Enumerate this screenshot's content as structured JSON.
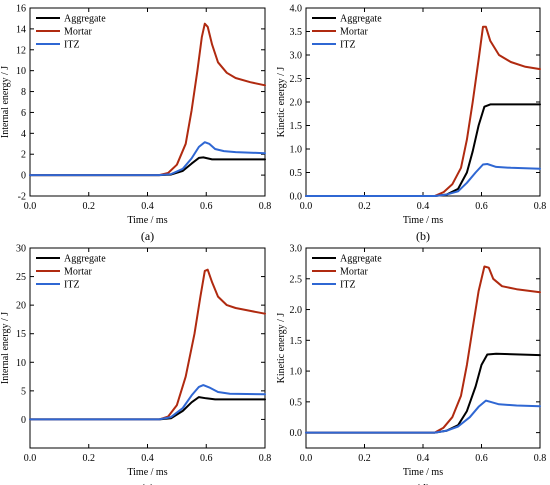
{
  "colors": {
    "Aggregate": "#000000",
    "Mortar": "#b02a10",
    "ITZ": "#2f67d3"
  },
  "chart_data": [
    {
      "id": "a",
      "type": "line",
      "caption": "(a)",
      "xlabel": "Time / ms",
      "ylabel": "Internal energy / J",
      "xlim": [
        0.0,
        0.8
      ],
      "ylim": [
        -2,
        16
      ],
      "xticks": [
        0.0,
        0.2,
        0.4,
        0.6,
        0.8
      ],
      "yticks": [
        -2,
        0,
        2,
        4,
        6,
        8,
        10,
        12,
        14,
        16
      ],
      "xtick_labels": [
        "0.0",
        "0.2",
        "0.4",
        "0.6",
        "0.8"
      ],
      "ytick_labels": [
        "-2",
        "0",
        "2",
        "4",
        "6",
        "8",
        "10",
        "12",
        "14",
        "16"
      ],
      "legend": "top-left",
      "series": [
        {
          "name": "Aggregate",
          "points": [
            [
              0,
              0
            ],
            [
              0.44,
              0
            ],
            [
              0.48,
              0.05
            ],
            [
              0.52,
              0.4
            ],
            [
              0.55,
              1.1
            ],
            [
              0.575,
              1.65
            ],
            [
              0.59,
              1.7
            ],
            [
              0.62,
              1.5
            ],
            [
              0.66,
              1.5
            ],
            [
              0.8,
              1.5
            ]
          ]
        },
        {
          "name": "Mortar",
          "points": [
            [
              0,
              0
            ],
            [
              0.44,
              0
            ],
            [
              0.47,
              0.2
            ],
            [
              0.5,
              1.0
            ],
            [
              0.53,
              3.0
            ],
            [
              0.55,
              6.2
            ],
            [
              0.57,
              10.0
            ],
            [
              0.585,
              13.2
            ],
            [
              0.595,
              14.5
            ],
            [
              0.605,
              14.2
            ],
            [
              0.62,
              12.5
            ],
            [
              0.64,
              10.8
            ],
            [
              0.67,
              9.8
            ],
            [
              0.7,
              9.3
            ],
            [
              0.75,
              8.9
            ],
            [
              0.8,
              8.6
            ]
          ]
        },
        {
          "name": "ITZ",
          "points": [
            [
              0,
              0
            ],
            [
              0.44,
              0
            ],
            [
              0.48,
              0.1
            ],
            [
              0.52,
              0.6
            ],
            [
              0.55,
              1.6
            ],
            [
              0.575,
              2.7
            ],
            [
              0.595,
              3.15
            ],
            [
              0.61,
              3.0
            ],
            [
              0.63,
              2.5
            ],
            [
              0.66,
              2.3
            ],
            [
              0.7,
              2.2
            ],
            [
              0.8,
              2.1
            ]
          ]
        }
      ]
    },
    {
      "id": "b",
      "type": "line",
      "caption": "(b)",
      "xlabel": "Time / ms",
      "ylabel": "Kinetic energy / J",
      "xlim": [
        0.0,
        0.8
      ],
      "ylim": [
        0.0,
        4.0
      ],
      "xticks": [
        0.0,
        0.2,
        0.4,
        0.6,
        0.8
      ],
      "yticks": [
        0.0,
        0.5,
        1.0,
        1.5,
        2.0,
        2.5,
        3.0,
        3.5,
        4.0
      ],
      "xtick_labels": [
        "0.0",
        "0.2",
        "0.4",
        "0.6",
        "0.8"
      ],
      "ytick_labels": [
        "0.0",
        "0.5",
        "1.0",
        "1.5",
        "2.0",
        "2.5",
        "3.0",
        "3.5",
        "4.0"
      ],
      "legend": "top-left",
      "series": [
        {
          "name": "Aggregate",
          "points": [
            [
              0,
              0
            ],
            [
              0.44,
              0
            ],
            [
              0.48,
              0.03
            ],
            [
              0.52,
              0.15
            ],
            [
              0.55,
              0.5
            ],
            [
              0.57,
              0.95
            ],
            [
              0.59,
              1.5
            ],
            [
              0.61,
              1.9
            ],
            [
              0.63,
              1.95
            ],
            [
              0.8,
              1.95
            ]
          ]
        },
        {
          "name": "Mortar",
          "points": [
            [
              0,
              0
            ],
            [
              0.44,
              0
            ],
            [
              0.47,
              0.08
            ],
            [
              0.5,
              0.25
            ],
            [
              0.53,
              0.6
            ],
            [
              0.55,
              1.2
            ],
            [
              0.57,
              2.0
            ],
            [
              0.59,
              2.9
            ],
            [
              0.605,
              3.6
            ],
            [
              0.615,
              3.6
            ],
            [
              0.63,
              3.3
            ],
            [
              0.66,
              3.0
            ],
            [
              0.7,
              2.85
            ],
            [
              0.75,
              2.75
            ],
            [
              0.8,
              2.7
            ]
          ]
        },
        {
          "name": "ITZ",
          "points": [
            [
              0,
              0
            ],
            [
              0.44,
              0
            ],
            [
              0.48,
              0.03
            ],
            [
              0.52,
              0.1
            ],
            [
              0.55,
              0.28
            ],
            [
              0.58,
              0.5
            ],
            [
              0.605,
              0.67
            ],
            [
              0.62,
              0.68
            ],
            [
              0.65,
              0.62
            ],
            [
              0.7,
              0.6
            ],
            [
              0.8,
              0.58
            ]
          ]
        }
      ]
    },
    {
      "id": "c",
      "type": "line",
      "caption": "(c)",
      "xlabel": "Time / ms",
      "ylabel": "Internal energy / J",
      "xlim": [
        0.0,
        0.8
      ],
      "ylim": [
        -5,
        30
      ],
      "xticks": [
        0.0,
        0.2,
        0.4,
        0.6,
        0.8
      ],
      "yticks": [
        0,
        5,
        10,
        15,
        20,
        25,
        30
      ],
      "xtick_labels": [
        "0.0",
        "0.2",
        "0.4",
        "0.6",
        "0.8"
      ],
      "ytick_labels": [
        "0",
        "5",
        "10",
        "15",
        "20",
        "25",
        "30"
      ],
      "legend": "top-left",
      "series": [
        {
          "name": "Aggregate",
          "points": [
            [
              0,
              0
            ],
            [
              0.44,
              0
            ],
            [
              0.48,
              0.2
            ],
            [
              0.52,
              1.5
            ],
            [
              0.55,
              3.0
            ],
            [
              0.575,
              3.9
            ],
            [
              0.6,
              3.7
            ],
            [
              0.63,
              3.5
            ],
            [
              0.8,
              3.5
            ]
          ]
        },
        {
          "name": "Mortar",
          "points": [
            [
              0,
              0
            ],
            [
              0.44,
              0
            ],
            [
              0.47,
              0.5
            ],
            [
              0.5,
              2.5
            ],
            [
              0.53,
              7.5
            ],
            [
              0.56,
              15.0
            ],
            [
              0.58,
              21.5
            ],
            [
              0.595,
              26.0
            ],
            [
              0.605,
              26.2
            ],
            [
              0.62,
              24.0
            ],
            [
              0.64,
              21.5
            ],
            [
              0.67,
              20.0
            ],
            [
              0.7,
              19.5
            ],
            [
              0.75,
              19.0
            ],
            [
              0.8,
              18.5
            ]
          ]
        },
        {
          "name": "ITZ",
          "points": [
            [
              0,
              0
            ],
            [
              0.44,
              0
            ],
            [
              0.48,
              0.4
            ],
            [
              0.52,
              2.0
            ],
            [
              0.55,
              4.2
            ],
            [
              0.575,
              5.7
            ],
            [
              0.59,
              6.0
            ],
            [
              0.61,
              5.6
            ],
            [
              0.64,
              4.8
            ],
            [
              0.68,
              4.5
            ],
            [
              0.8,
              4.4
            ]
          ]
        }
      ]
    },
    {
      "id": "d",
      "type": "line",
      "caption": "(d)",
      "xlabel": "Time / ms",
      "ylabel": "Kinetic energy / J",
      "xlim": [
        0.0,
        0.8
      ],
      "ylim": [
        -0.25,
        3.0
      ],
      "xticks": [
        0.0,
        0.2,
        0.4,
        0.6,
        0.8
      ],
      "yticks": [
        0.0,
        0.5,
        1.0,
        1.5,
        2.0,
        2.5,
        3.0
      ],
      "xtick_labels": [
        "0.0",
        "0.2",
        "0.4",
        "0.6",
        "0.8"
      ],
      "ytick_labels": [
        "0.0",
        "0.5",
        "1.0",
        "1.5",
        "2.0",
        "2.5",
        "3.0"
      ],
      "legend": "top-left",
      "series": [
        {
          "name": "Aggregate",
          "points": [
            [
              0,
              0
            ],
            [
              0.44,
              0
            ],
            [
              0.48,
              0.03
            ],
            [
              0.52,
              0.12
            ],
            [
              0.55,
              0.35
            ],
            [
              0.58,
              0.75
            ],
            [
              0.6,
              1.1
            ],
            [
              0.62,
              1.27
            ],
            [
              0.65,
              1.28
            ],
            [
              0.8,
              1.26
            ]
          ]
        },
        {
          "name": "Mortar",
          "points": [
            [
              0,
              0
            ],
            [
              0.44,
              0
            ],
            [
              0.47,
              0.08
            ],
            [
              0.5,
              0.25
            ],
            [
              0.53,
              0.6
            ],
            [
              0.55,
              1.1
            ],
            [
              0.57,
              1.7
            ],
            [
              0.59,
              2.3
            ],
            [
              0.61,
              2.7
            ],
            [
              0.625,
              2.68
            ],
            [
              0.64,
              2.5
            ],
            [
              0.67,
              2.38
            ],
            [
              0.72,
              2.33
            ],
            [
              0.8,
              2.28
            ]
          ]
        },
        {
          "name": "ITZ",
          "points": [
            [
              0,
              0
            ],
            [
              0.44,
              0
            ],
            [
              0.48,
              0.03
            ],
            [
              0.52,
              0.1
            ],
            [
              0.56,
              0.25
            ],
            [
              0.59,
              0.42
            ],
            [
              0.615,
              0.52
            ],
            [
              0.63,
              0.5
            ],
            [
              0.66,
              0.46
            ],
            [
              0.72,
              0.44
            ],
            [
              0.8,
              0.43
            ]
          ]
        }
      ]
    }
  ]
}
